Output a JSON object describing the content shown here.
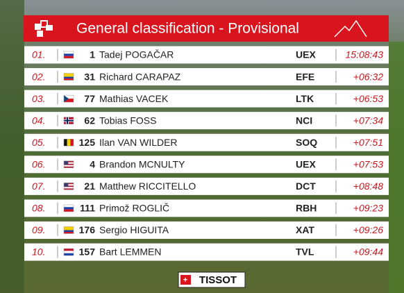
{
  "header": {
    "title": "General classification - Provisional"
  },
  "table": {
    "rows": [
      {
        "rank": "01.",
        "number": "1",
        "name": "Tadej POGAČAR",
        "team": "UEX",
        "time": "15:08:43"
      },
      {
        "rank": "02.",
        "number": "31",
        "name": "Richard CARAPAZ",
        "team": "EFE",
        "time": "+06:32"
      },
      {
        "rank": "03.",
        "number": "77",
        "name": "Mathias VACEK",
        "team": "LTK",
        "time": "+06:53"
      },
      {
        "rank": "04.",
        "number": "62",
        "name": "Tobias FOSS",
        "team": "NCI",
        "time": "+07:34"
      },
      {
        "rank": "05.",
        "number": "125",
        "name": "Ilan VAN WILDER",
        "team": "SOQ",
        "time": "+07:51"
      },
      {
        "rank": "06.",
        "number": "4",
        "name": "Brandon MCNULTY",
        "team": "UEX",
        "time": "+07:53"
      },
      {
        "rank": "07.",
        "number": "21",
        "name": "Matthew RICCITELLO",
        "team": "DCT",
        "time": "+08:48"
      },
      {
        "rank": "08.",
        "number": "111",
        "name": "Primož ROGLIČ",
        "team": "RBH",
        "time": "+09:23"
      },
      {
        "rank": "09.",
        "number": "176",
        "name": "Sergio HIGUITA",
        "team": "XAT",
        "time": "+09:26"
      },
      {
        "rank": "10.",
        "number": "157",
        "name": "Bart LEMMEN",
        "team": "TVL",
        "time": "+09:44"
      }
    ]
  },
  "footer": {
    "sponsor": "TISSOT"
  }
}
